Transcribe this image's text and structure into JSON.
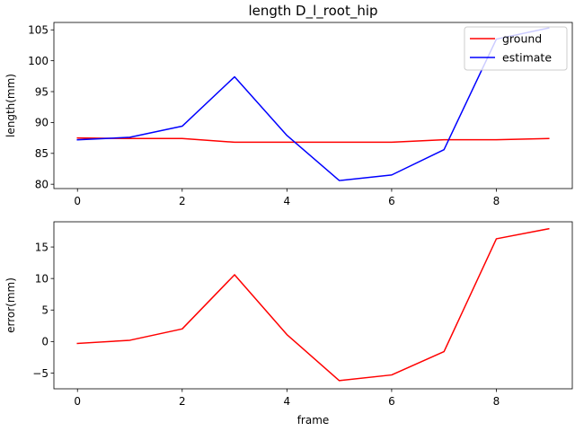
{
  "chart_data": [
    {
      "type": "line",
      "title": "length D_l_root_hip",
      "xlabel": "",
      "ylabel": "length(mm)",
      "x": [
        0,
        1,
        2,
        3,
        4,
        5,
        6,
        7,
        8,
        9
      ],
      "xlim": [
        -0.45,
        9.45
      ],
      "ylim": [
        79.3,
        106.2
      ],
      "xticks": [
        0,
        2,
        4,
        6,
        8
      ],
      "yticks": [
        80,
        85,
        90,
        95,
        100,
        105
      ],
      "legend": "top-right",
      "series": [
        {
          "name": "ground",
          "color": "#ff0000",
          "values": [
            87.5,
            87.4,
            87.4,
            86.8,
            86.8,
            86.8,
            86.8,
            87.2,
            87.2,
            87.4
          ]
        },
        {
          "name": "estimate",
          "color": "#0000ff",
          "values": [
            87.2,
            87.6,
            89.4,
            97.4,
            87.9,
            80.6,
            81.5,
            85.6,
            103.5,
            105.3
          ]
        }
      ]
    },
    {
      "type": "line",
      "title": "",
      "xlabel": "frame",
      "ylabel": "error(mm)",
      "x": [
        0,
        1,
        2,
        3,
        4,
        5,
        6,
        7,
        8,
        9
      ],
      "xlim": [
        -0.45,
        9.45
      ],
      "ylim": [
        -7.5,
        19.0
      ],
      "xticks": [
        0,
        2,
        4,
        6,
        8
      ],
      "yticks": [
        -5,
        0,
        5,
        10,
        15
      ],
      "series": [
        {
          "color": "#ff0000",
          "values": [
            -0.3,
            0.2,
            2.0,
            10.6,
            1.1,
            -6.2,
            -5.3,
            -1.6,
            16.3,
            17.9
          ]
        }
      ]
    }
  ]
}
